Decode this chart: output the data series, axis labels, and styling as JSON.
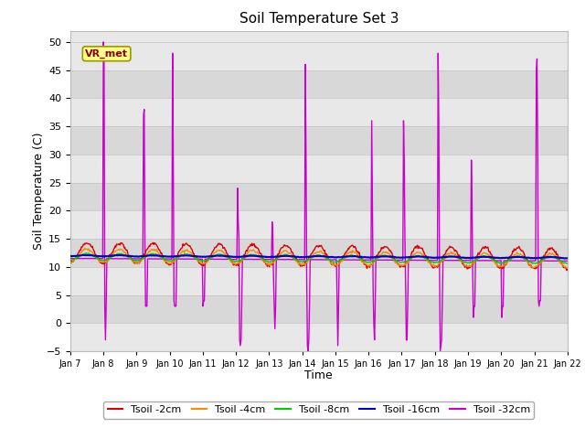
{
  "title": "Soil Temperature Set 3",
  "xlabel": "Time",
  "ylabel": "Soil Temperature (C)",
  "ylim": [
    -5,
    52
  ],
  "yticks": [
    -5,
    0,
    5,
    10,
    15,
    20,
    25,
    30,
    35,
    40,
    45,
    50
  ],
  "fig_bg": "#ffffff",
  "plot_bg_bands": [
    "#e8e8e8",
    "#d8d8d8"
  ],
  "legend_labels": [
    "Tsoil -2cm",
    "Tsoil -4cm",
    "Tsoil -8cm",
    "Tsoil -16cm",
    "Tsoil -32cm"
  ],
  "legend_colors": [
    "#dd0000",
    "#ff8800",
    "#00cc00",
    "#0000cc",
    "#cc00cc"
  ],
  "annotation_text": "VR_met",
  "x_tick_labels": [
    "Jan 7",
    "Jan 8",
    "Jan 9",
    "Jan 10",
    "Jan 11",
    "Jan 12",
    "Jan 13",
    "Jan 14",
    "Jan 15",
    "Jan 16",
    "Jan 17",
    "Jan 18",
    "Jan 19",
    "Jan 20",
    "Jan 21",
    "Jan 22"
  ],
  "n_days": 15,
  "pts_per_day": 48
}
